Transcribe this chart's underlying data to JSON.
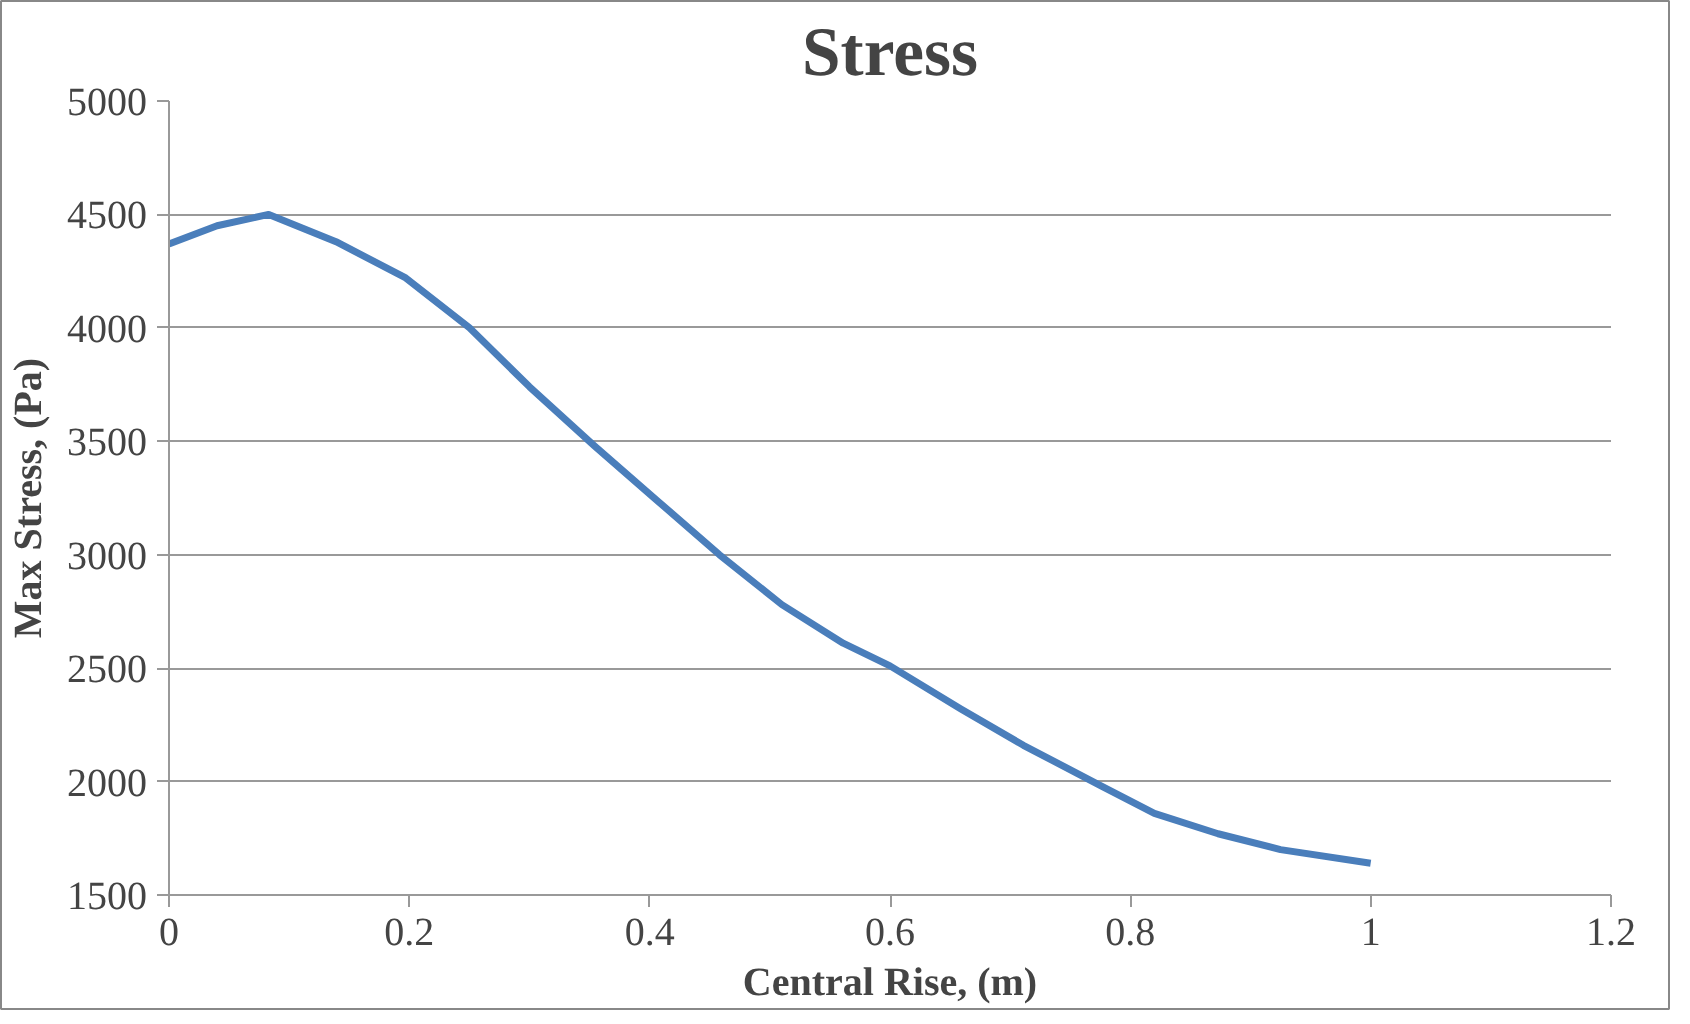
{
  "chart_data": {
    "type": "line",
    "title": "Stress",
    "xlabel": "Central Rise, (m)",
    "ylabel": "Max Stress, (Pa)",
    "series": [
      {
        "color": "#4a7ebb",
        "x": [
          0,
          0.04,
          0.083,
          0.139,
          0.197,
          0.25,
          0.3,
          0.354,
          0.406,
          0.458,
          0.51,
          0.561,
          0.6,
          0.659,
          0.711,
          0.776,
          0.82,
          0.873,
          0.925,
          1.0
        ],
        "values": [
          4370,
          4450,
          4500,
          4380,
          4220,
          4000,
          3740,
          3480,
          3240,
          3000,
          2780,
          2610,
          2510,
          2320,
          2160,
          1980,
          1860,
          1770,
          1700,
          1640
        ]
      }
    ],
    "xlim": [
      0,
      1.2
    ],
    "xticks": [
      0,
      0.2,
      0.4,
      0.6,
      0.8,
      1,
      1.2
    ],
    "ylim": [
      1500,
      5000
    ],
    "yticks": [
      1500,
      2000,
      2500,
      3000,
      3500,
      4000,
      4500,
      5000
    ],
    "grid": "y",
    "marker": "none",
    "line_style": "solid"
  }
}
